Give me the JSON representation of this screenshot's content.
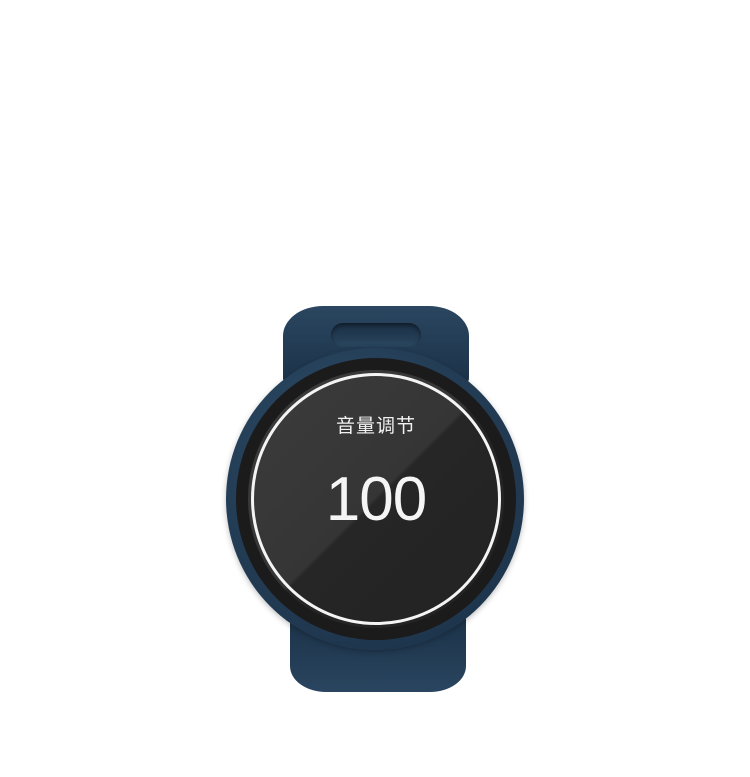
{
  "watch": {
    "screen": {
      "title": "音量调节",
      "value": "100"
    },
    "colors": {
      "body": "#243e57",
      "screen": "#2c2c2c",
      "ring": "#f4f4f4",
      "text": "#f2f2f2"
    }
  }
}
